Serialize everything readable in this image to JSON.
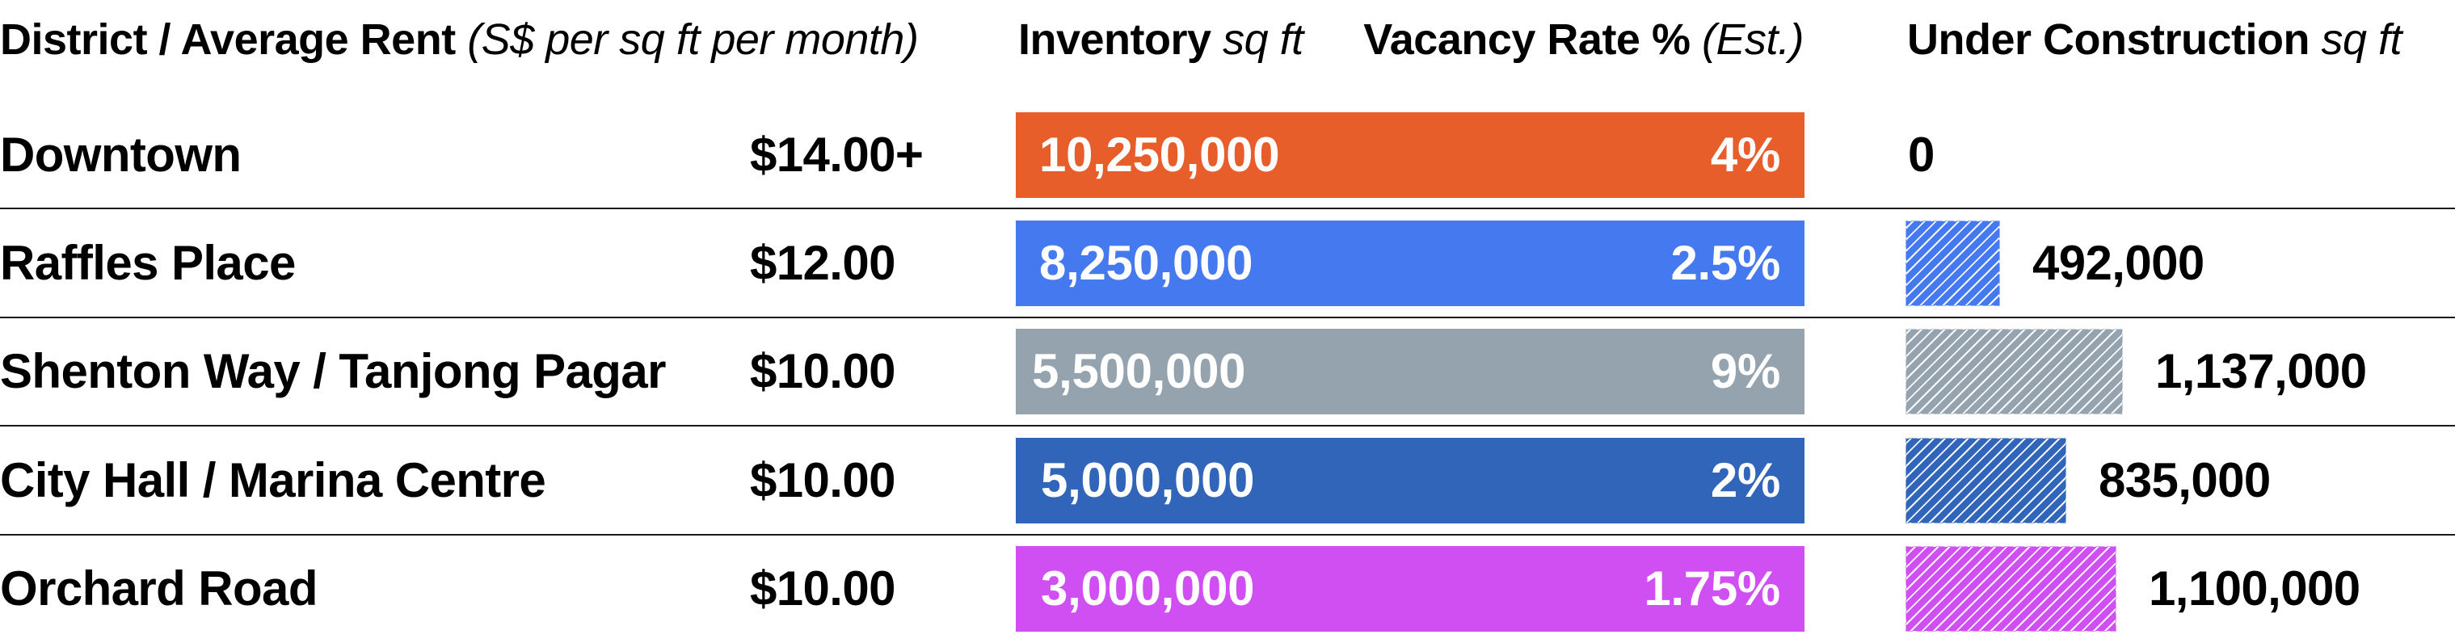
{
  "headers": {
    "district": {
      "bold": "District / Average Rent",
      "italic": "(S$ per sq ft per month)"
    },
    "inventory": {
      "bold": "Inventory",
      "italic": "sq ft"
    },
    "vacancy": {
      "bold": "Vacancy Rate %",
      "italic": "(Est.)"
    },
    "under_construction": {
      "bold": "Under Construction",
      "italic": "sq ft"
    }
  },
  "rows": [
    {
      "district": "Downtown",
      "rent": "$14.00+",
      "inventory": "10,250,000",
      "vacancy": "4%",
      "under_construction": "0",
      "color": "#E85E2B",
      "uc_width": 0,
      "inv_pad": 29
    },
    {
      "district": "Raffles Place",
      "rent": "$12.00",
      "inventory": "8,250,000",
      "vacancy": "2.5%",
      "under_construction": "492,000",
      "color": "#4479F0",
      "uc_width": 117,
      "inv_pad": 29
    },
    {
      "district": "Shenton Way / Tanjong Pagar",
      "rent": "$10.00",
      "inventory": "5,500,000",
      "vacancy": "9%",
      "under_construction": "1,137,000",
      "color": "#95A3AE",
      "uc_width": 269,
      "inv_pad": 20
    },
    {
      "district": "City Hall / Marina Centre",
      "rent": "$10.00",
      "inventory": "5,000,000",
      "vacancy": "2%",
      "under_construction": "835,000",
      "color": "#3065BA",
      "uc_width": 199,
      "inv_pad": 31
    },
    {
      "district": "Orchard Road",
      "rent": "$10.00",
      "inventory": "3,000,000",
      "vacancy": "1.75%",
      "under_construction": "1,100,000",
      "color": "#CF4FF2",
      "uc_width": 261,
      "inv_pad": 31
    }
  ],
  "chart_data": {
    "type": "table",
    "title": "",
    "columns": [
      "District",
      "Average Rent (S$ per sq ft per month)",
      "Inventory (sq ft)",
      "Vacancy Rate % (Est.)",
      "Under Construction (sq ft)"
    ],
    "categories": [
      "Downtown",
      "Raffles Place",
      "Shenton Way / Tanjong Pagar",
      "City Hall / Marina Centre",
      "Orchard Road"
    ],
    "series": [
      {
        "name": "Average Rent (S$ per sq ft per month)",
        "values": [
          14.0,
          12.0,
          10.0,
          10.0,
          10.0
        ],
        "labels": [
          "$14.00+",
          "$12.00",
          "$10.00",
          "$10.00",
          "$10.00"
        ]
      },
      {
        "name": "Inventory (sq ft)",
        "values": [
          10250000,
          8250000,
          5500000,
          5000000,
          3000000
        ]
      },
      {
        "name": "Vacancy Rate % (Est.)",
        "values": [
          4,
          2.5,
          9,
          2,
          1.75
        ]
      },
      {
        "name": "Under Construction (sq ft)",
        "values": [
          0,
          492000,
          1137000,
          835000,
          1100000
        ],
        "bar_style": "hatched"
      }
    ],
    "colors": [
      "#E85E2B",
      "#4479F0",
      "#95A3AE",
      "#3065BA",
      "#CF4FF2"
    ],
    "grid": false,
    "legend": "none"
  }
}
